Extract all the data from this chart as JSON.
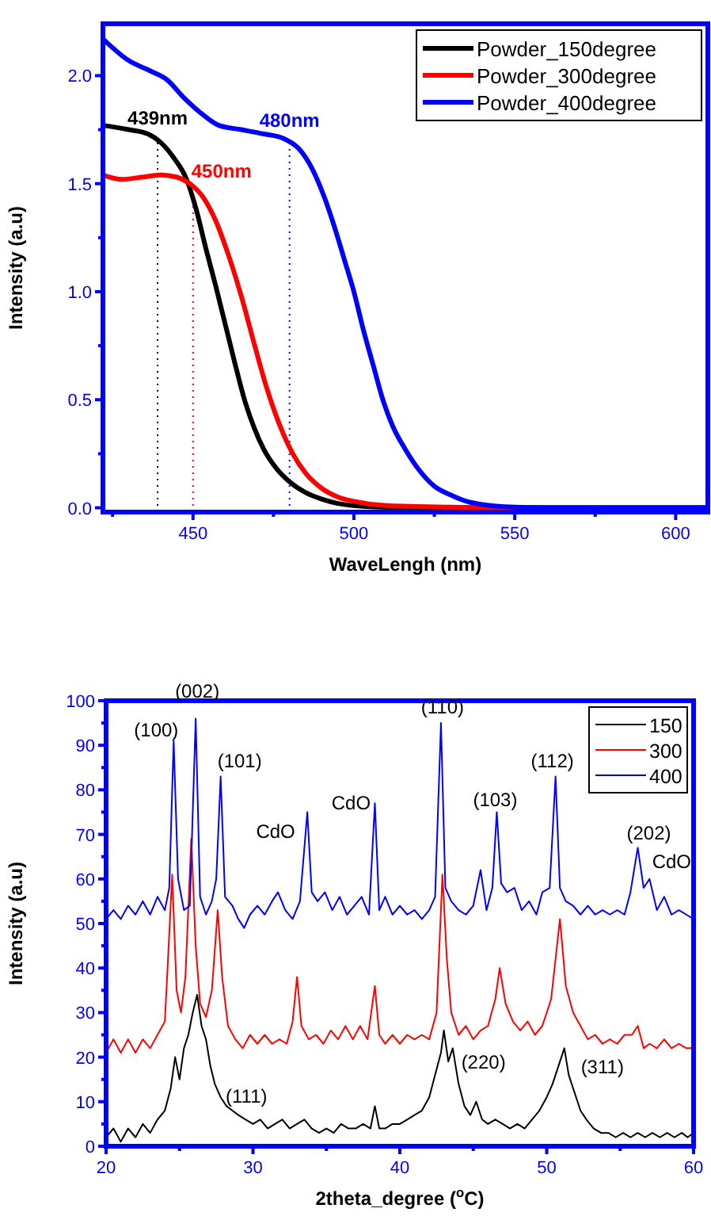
{
  "chart_data": [
    {
      "type": "line",
      "xlabel": "WaveLengh (nm)",
      "ylabel": "Intensity (a.u)",
      "xlim": [
        422,
        610
      ],
      "ylim": [
        -0.02,
        2.24
      ],
      "xticks": [
        {
          "value": 425,
          "label": null
        },
        450,
        {
          "value": 475,
          "label": null
        },
        500,
        {
          "value": 525,
          "label": null
        },
        550,
        {
          "value": 575,
          "label": null
        },
        600
      ],
      "yticks": [
        {
          "value": 0,
          "label": "0.0"
        },
        {
          "value": 0.25,
          "label": null
        },
        0.5,
        {
          "value": 0.75,
          "label": null
        },
        {
          "value": 1,
          "label": "1.0"
        },
        {
          "value": 1.25,
          "label": null
        },
        1.5,
        {
          "value": 1.75,
          "label": null
        },
        {
          "value": 2,
          "label": "2.0"
        }
      ],
      "legend": "top right",
      "series": [
        {
          "name": "Powder_150degree",
          "color": "#000000",
          "x": [
            422,
            430,
            436,
            440,
            444,
            448,
            451,
            454,
            457,
            460,
            463,
            466,
            469,
            472,
            476,
            480,
            485,
            490,
            495,
            505,
            520,
            610
          ],
          "values": [
            1.77,
            1.75,
            1.73,
            1.69,
            1.62,
            1.52,
            1.38,
            1.2,
            1.03,
            0.85,
            0.67,
            0.5,
            0.37,
            0.27,
            0.18,
            0.12,
            0.07,
            0.04,
            0.02,
            0.005,
            0,
            0
          ]
        },
        {
          "name": "Powder_300degree",
          "color": "#ff0000",
          "x": [
            422,
            428,
            434,
            440,
            445,
            449,
            453,
            457,
            461,
            465,
            469,
            473,
            477,
            481,
            485,
            490,
            495,
            500,
            510,
            530,
            550,
            610
          ],
          "values": [
            1.54,
            1.52,
            1.53,
            1.54,
            1.53,
            1.5,
            1.44,
            1.33,
            1.17,
            0.98,
            0.76,
            0.55,
            0.38,
            0.25,
            0.16,
            0.09,
            0.05,
            0.03,
            0.01,
            0.003,
            0,
            0
          ]
        },
        {
          "name": "Powder_400degree",
          "color": "#0000ff",
          "x": [
            422,
            430,
            437,
            442,
            447,
            453,
            458,
            465,
            472,
            478,
            483,
            487,
            491,
            495,
            497,
            500,
            503,
            506,
            509,
            512,
            516,
            520,
            525,
            530,
            535,
            540,
            550,
            560,
            610
          ],
          "values": [
            2.17,
            2.07,
            2.02,
            1.98,
            1.9,
            1.82,
            1.77,
            1.75,
            1.73,
            1.71,
            1.66,
            1.57,
            1.43,
            1.25,
            1.15,
            1,
            0.82,
            0.66,
            0.5,
            0.38,
            0.27,
            0.18,
            0.1,
            0.06,
            0.03,
            0.015,
            0.003,
            0,
            0
          ]
        }
      ],
      "ref_lines": [
        {
          "axis": "x",
          "value": 439,
          "label": "439nm",
          "color": "#000000",
          "line_style": "dotted"
        },
        {
          "axis": "x",
          "value": 450,
          "label": "450nm",
          "color": "#ff0000",
          "line_style": "dotted"
        },
        {
          "axis": "x",
          "value": 480,
          "label": "480nm",
          "color": "#0000ff",
          "line_style": "dotted"
        }
      ]
    },
    {
      "type": "line",
      "xlabel": "2theta_degree ($^{o}$C)",
      "ylabel": "Intensity (a.u)",
      "xlim": [
        20,
        60
      ],
      "ylim": [
        0,
        100
      ],
      "xticks": [
        20,
        {
          "value": 25,
          "label": null
        },
        30,
        {
          "value": 35,
          "label": null
        },
        40,
        {
          "value": 45,
          "label": null
        },
        50,
        {
          "value": 55,
          "label": null
        },
        60
      ],
      "yticks": [
        0,
        {
          "value": 5,
          "label": null
        },
        10,
        {
          "value": 15,
          "label": null
        },
        20,
        {
          "value": 25,
          "label": null
        },
        30,
        {
          "value": 35,
          "label": null
        },
        40,
        {
          "value": 45,
          "label": null
        },
        50,
        {
          "value": 55,
          "label": null
        },
        60,
        {
          "value": 65,
          "label": null
        },
        70,
        {
          "value": 75,
          "label": null
        },
        80,
        {
          "value": 85,
          "label": null
        },
        90,
        {
          "value": 95,
          "label": null
        },
        100
      ],
      "legend": "top right",
      "series": [
        {
          "name": "150",
          "color": "#000000",
          "x": [
            20,
            20.5,
            21,
            21.5,
            22,
            22.5,
            23,
            23.5,
            24,
            24.4,
            24.7,
            25,
            25.3,
            25.6,
            25.9,
            26.2,
            26.5,
            26.8,
            27.1,
            27.4,
            27.8,
            28.2,
            28.6,
            29,
            29.5,
            30,
            30.5,
            31,
            31.5,
            32,
            32.5,
            33,
            33.5,
            34,
            34.5,
            35,
            35.5,
            36,
            36.5,
            37,
            37.5,
            38,
            38.3,
            38.6,
            39,
            39.5,
            40,
            40.5,
            41,
            41.5,
            42,
            42.4,
            42.8,
            43,
            43.3,
            43.6,
            44,
            44.4,
            44.8,
            45.2,
            45.6,
            46,
            46.5,
            47,
            47.5,
            48,
            48.5,
            49,
            49.5,
            50,
            50.4,
            50.8,
            51.2,
            51.5,
            51.9,
            52.3,
            52.7,
            53.2,
            53.7,
            54.2,
            54.7,
            55.2,
            55.7,
            56.2,
            56.7,
            57.2,
            57.7,
            58.2,
            58.7,
            59.2,
            59.6,
            60
          ],
          "values": [
            2,
            4,
            1,
            4,
            2,
            5,
            3,
            6,
            8,
            13,
            20,
            15,
            22,
            25,
            30,
            34,
            27,
            24,
            18,
            14,
            11,
            9,
            8,
            7,
            6,
            5,
            6,
            4,
            5,
            6,
            4,
            5,
            6,
            4,
            3,
            4,
            3,
            5,
            4,
            4,
            5,
            4,
            9,
            4,
            4,
            5,
            5,
            6,
            7,
            8,
            11,
            16,
            21,
            26,
            19,
            22,
            14,
            9,
            7,
            10,
            6,
            5,
            6,
            5,
            4,
            5,
            4,
            6,
            8,
            11,
            14,
            18,
            22,
            16,
            12,
            8,
            6,
            4,
            3,
            3,
            2,
            3,
            2,
            3,
            2,
            3,
            2,
            3,
            2,
            3,
            2,
            3
          ]
        },
        {
          "name": "300",
          "color": "#ff0000",
          "x": [
            20,
            20.5,
            21,
            21.5,
            22,
            22.5,
            23,
            23.5,
            24,
            24.2,
            24.5,
            24.8,
            25.1,
            25.4,
            25.8,
            26.1,
            26.4,
            26.8,
            27.2,
            27.6,
            27.9,
            28.3,
            28.8,
            29.3,
            29.8,
            30.3,
            30.8,
            31.3,
            31.8,
            32.3,
            32.7,
            33,
            33.3,
            33.8,
            34.3,
            34.8,
            35.3,
            35.8,
            36.3,
            36.8,
            37.3,
            37.8,
            38.3,
            38.6,
            39,
            39.5,
            40,
            40.5,
            41,
            41.5,
            42,
            42.5,
            42.9,
            43.2,
            43.5,
            44,
            44.5,
            45,
            45.5,
            46,
            46.5,
            46.8,
            47.2,
            47.7,
            48.2,
            48.7,
            49.2,
            49.7,
            50.3,
            50.9,
            51.3,
            51.8,
            52.3,
            52.8,
            53.3,
            53.8,
            54.3,
            54.8,
            55.3,
            55.8,
            56.2,
            56.6,
            57,
            57.5,
            58,
            58.5,
            59,
            59.5,
            60
          ],
          "values": [
            21,
            24,
            21,
            24,
            21,
            24,
            22,
            25,
            28,
            41,
            61,
            35,
            30,
            38,
            69,
            45,
            32,
            29,
            35,
            53,
            38,
            27,
            24,
            22,
            25,
            23,
            25,
            23,
            24,
            23,
            28,
            38,
            27,
            24,
            25,
            23,
            26,
            24,
            27,
            24,
            27,
            24,
            36,
            25,
            23,
            25,
            23,
            25,
            24,
            25,
            24,
            30,
            61,
            42,
            30,
            25,
            27,
            24,
            26,
            27,
            33,
            40,
            32,
            28,
            26,
            28,
            25,
            27,
            33,
            51,
            36,
            30,
            27,
            24,
            25,
            23,
            24,
            23,
            25,
            25,
            27,
            22,
            23,
            22,
            24,
            22,
            23,
            22,
            22
          ]
        },
        {
          "name": "400",
          "color": "#0000ff",
          "x": [
            20,
            20.5,
            21,
            21.5,
            22,
            22.5,
            23,
            23.5,
            24,
            24.3,
            24.6,
            24.9,
            25.3,
            25.7,
            26.1,
            26.4,
            26.8,
            27.2,
            27.5,
            27.8,
            28.1,
            28.6,
            29,
            29.4,
            29.8,
            30.3,
            30.8,
            31.3,
            31.7,
            32.2,
            32.7,
            33.2,
            33.7,
            34,
            34.4,
            34.9,
            35.4,
            35.9,
            36.4,
            36.9,
            37.4,
            37.9,
            38.3,
            38.6,
            39,
            39.5,
            40,
            40.5,
            41,
            41.5,
            42,
            42.4,
            42.8,
            43.1,
            43.5,
            44,
            44.5,
            45,
            45.5,
            45.9,
            46.3,
            46.6,
            46.9,
            47.3,
            47.8,
            48.3,
            48.8,
            49.3,
            49.7,
            50.2,
            50.6,
            50.9,
            51.3,
            51.8,
            52.3,
            52.8,
            53.3,
            53.8,
            54.3,
            54.8,
            55.3,
            55.7,
            56.2,
            56.6,
            57,
            57.5,
            58,
            58.5,
            59,
            59.5,
            60
          ],
          "values": [
            51,
            53,
            51,
            54,
            52,
            55,
            52,
            56,
            53,
            58,
            91,
            60,
            53,
            54,
            96,
            56,
            52,
            55,
            60,
            83,
            56,
            54,
            51,
            49,
            52,
            54,
            52,
            55,
            57,
            53,
            51,
            55,
            75,
            57,
            55,
            57,
            53,
            56,
            52,
            54,
            56,
            52,
            77,
            53,
            56,
            52,
            54,
            52,
            53,
            51,
            53,
            56,
            95,
            58,
            55,
            53,
            52,
            54,
            62,
            53,
            58,
            75,
            59,
            57,
            58,
            53,
            55,
            52,
            57,
            58,
            83,
            58,
            55,
            54,
            52,
            54,
            52,
            53,
            52,
            53,
            52,
            57,
            67,
            58,
            60,
            53,
            56,
            52,
            53,
            52,
            51
          ]
        }
      ],
      "annotations": [
        {
          "text": "(100)",
          "x": 24.6,
          "y": 91
        },
        {
          "text": "(002)",
          "x": 26.1,
          "y": 96
        },
        {
          "text": "(101)",
          "x": 27.8,
          "y": 83
        },
        {
          "text": "CdO",
          "x": 33.7,
          "y": 75
        },
        {
          "text": "CdO",
          "x": 38.3,
          "y": 77
        },
        {
          "text": "(110)",
          "x": 42.8,
          "y": 95
        },
        {
          "text": "(103)",
          "x": 46.6,
          "y": 75
        },
        {
          "text": "(112)",
          "x": 50.6,
          "y": 83
        },
        {
          "text": "(202)",
          "x": 56.2,
          "y": 67
        },
        {
          "text": "CdO",
          "x": 57,
          "y": 60
        },
        {
          "text": "(111)",
          "x": 27.4,
          "y": 14
        },
        {
          "text": "(220)",
          "x": 43,
          "y": 26
        },
        {
          "text": "(311)",
          "x": 51.2,
          "y": 22
        }
      ]
    }
  ]
}
